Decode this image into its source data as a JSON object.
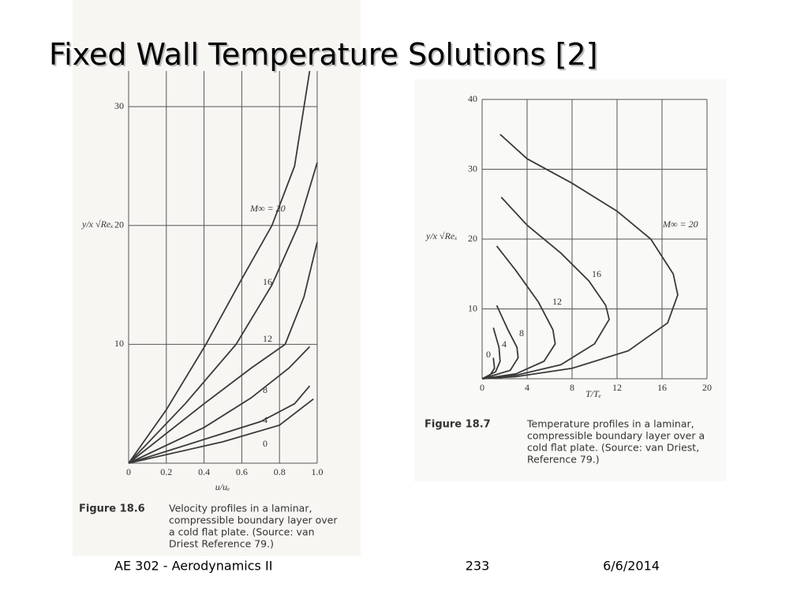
{
  "slide": {
    "title": "Fixed Wall Temperature Solutions [2]",
    "footer_left": "AE 302 - Aerodynamics II",
    "footer_center": "233",
    "footer_right": "6/6/2014"
  },
  "chart_data": [
    {
      "type": "line",
      "x_label": "u/uₑ",
      "y_label": "y/x √Reₓ",
      "xlim": [
        0,
        1
      ],
      "ylim": [
        0,
        33
      ],
      "xticks": [
        0,
        0.2,
        0.4,
        0.6,
        0.8,
        {
          "value": 1,
          "label": "1.0"
        }
      ],
      "yticks": [
        10,
        20,
        30
      ],
      "grid": true,
      "color": "#3a3a3a",
      "caption_label": "Figure 18.6",
      "caption": [
        "Velocity profiles in a laminar,",
        "compressible boundary layer over",
        "a cold flat plate.  (Source: van",
        "Driest Reference 79.)"
      ],
      "series": [
        {
          "name": "M∞ = 20",
          "x": [
            0,
            0.2,
            0.41,
            0.6,
            0.76,
            0.88,
            0.96
          ],
          "values": [
            0,
            4.5,
            10,
            15.5,
            20,
            25,
            33
          ]
        },
        {
          "name": "16",
          "x": [
            0,
            0.3,
            0.57,
            0.76,
            0.9,
            1.0
          ],
          "values": [
            0,
            5,
            10,
            15,
            20,
            25.3
          ]
        },
        {
          "name": "12",
          "x": [
            0,
            0.4,
            0.65,
            0.83,
            0.93,
            1.0
          ],
          "values": [
            0,
            5,
            8,
            10,
            14,
            18.6
          ]
        },
        {
          "name": "8",
          "x": [
            0,
            0.4,
            0.65,
            0.85,
            0.96
          ],
          "values": [
            0,
            3,
            5.5,
            8,
            9.8
          ]
        },
        {
          "name": "4",
          "x": [
            0,
            0.4,
            0.7,
            0.88,
            0.96
          ],
          "values": [
            0,
            2,
            3.5,
            5,
            6.5
          ]
        },
        {
          "name": "0",
          "x": [
            0,
            0.5,
            0.8,
            0.98
          ],
          "values": [
            0,
            1.8,
            3.2,
            5.4
          ]
        }
      ]
    },
    {
      "type": "line",
      "x_label": "T/Tₑ",
      "y_label": "y/x √Reₓ",
      "xlim": [
        0,
        20
      ],
      "ylim": [
        0,
        40
      ],
      "xticks": [
        0,
        4,
        8,
        12,
        16,
        20
      ],
      "yticks": [
        10,
        20,
        30,
        40
      ],
      "grid": true,
      "color": "#3a3a3a",
      "caption_label": "Figure 18.7",
      "caption": [
        "Temperature profiles in a laminar,",
        "compressible boundary layer over a",
        "cold flat plate.  (Source: van Driest,",
        "Reference 79.)"
      ],
      "series": [
        {
          "name": "M∞ = 20",
          "x": [
            1.6,
            4,
            8,
            12,
            15,
            17,
            17.4,
            16.5,
            13,
            8,
            3,
            0
          ],
          "values": [
            35,
            31.5,
            28,
            24,
            20,
            15,
            12,
            8,
            4,
            1.5,
            0.3,
            0
          ]
        },
        {
          "name": "16",
          "x": [
            1.7,
            4,
            7,
            9.5,
            11,
            11.3,
            10,
            7,
            3,
            0
          ],
          "values": [
            26,
            22,
            18,
            14,
            10.5,
            8.5,
            5,
            2,
            0.5,
            0
          ]
        },
        {
          "name": "12",
          "x": [
            1.3,
            3,
            5,
            6.3,
            6.5,
            5.5,
            3,
            0
          ],
          "values": [
            19,
            15.5,
            11,
            7,
            5,
            2.5,
            0.7,
            0
          ]
        },
        {
          "name": "8",
          "x": [
            1.3,
            2.3,
            3.1,
            3.2,
            2.5,
            0
          ],
          "values": [
            10.5,
            7,
            4.5,
            3,
            1.2,
            0
          ]
        },
        {
          "name": "4",
          "x": [
            1,
            1.5,
            1.6,
            1.2,
            0
          ],
          "values": [
            7.3,
            4.5,
            2.5,
            1,
            0
          ]
        },
        {
          "name": "0",
          "x": [
            1,
            1.1,
            0.7,
            0
          ],
          "values": [
            3,
            1.5,
            0.5,
            0
          ]
        }
      ]
    }
  ]
}
